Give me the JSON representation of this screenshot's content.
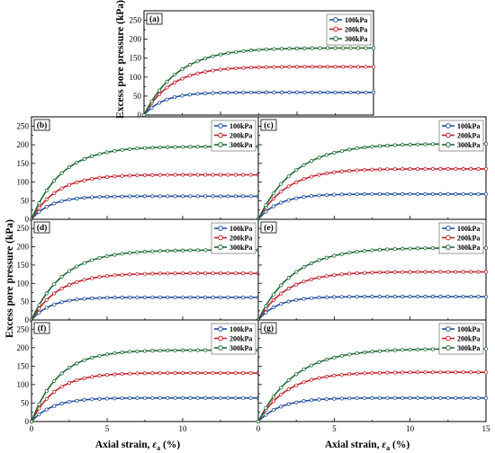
{
  "colors": {
    "100kPa": "#1f4e9c",
    "200kPa": "#c0222b",
    "300kPa": "#1e6b35"
  },
  "figure": {
    "ylabel": "Excess pore pressure (kPa)",
    "xlabel_main": "Axial strain, ",
    "xlabel_symbol": "ε",
    "xlabel_sub": "a",
    "xlabel_unit": " (%)"
  },
  "chart_data": [
    {
      "type": "line",
      "panel": "(a)",
      "xlim": [
        0,
        15
      ],
      "ylim": [
        0,
        275
      ],
      "xticks": [],
      "yticks": [
        0,
        50,
        100,
        150,
        200,
        250
      ],
      "legend": "top-right",
      "grid": false,
      "series": [
        {
          "name": "100kPa",
          "color_key": "100kPa",
          "plateau": 60,
          "strain_scale": 1.3,
          "late_slope": -0.04
        },
        {
          "name": "200kPa",
          "color_key": "200kPa",
          "plateau": 128,
          "strain_scale": 1.8,
          "late_slope": -0.1
        },
        {
          "name": "300kPa",
          "color_key": "300kPa",
          "plateau": 178,
          "strain_scale": 2.2,
          "late_slope": -0.14
        }
      ]
    },
    {
      "type": "line",
      "panel": "(b)",
      "xlim": [
        0,
        15
      ],
      "ylim": [
        0,
        275
      ],
      "xticks": [],
      "yticks": [
        0,
        50,
        100,
        150,
        200,
        250
      ],
      "legend": "top-right",
      "grid": false,
      "series": [
        {
          "name": "100kPa",
          "color_key": "100kPa",
          "plateau": 62,
          "strain_scale": 1.3,
          "late_slope": -0.04
        },
        {
          "name": "200kPa",
          "color_key": "200kPa",
          "plateau": 120,
          "strain_scale": 1.7,
          "late_slope": -0.08
        },
        {
          "name": "300kPa",
          "color_key": "300kPa",
          "plateau": 196,
          "strain_scale": 2.0,
          "late_slope": -0.12
        }
      ]
    },
    {
      "type": "line",
      "panel": "(c)",
      "xlim": [
        0,
        15
      ],
      "ylim": [
        0,
        275
      ],
      "xticks": [],
      "yticks": [],
      "legend": "top-right",
      "grid": false,
      "series": [
        {
          "name": "100kPa",
          "color_key": "100kPa",
          "plateau": 68,
          "strain_scale": 1.4,
          "late_slope": -0.04
        },
        {
          "name": "200kPa",
          "color_key": "200kPa",
          "plateau": 136,
          "strain_scale": 1.9,
          "late_slope": -0.08
        },
        {
          "name": "300kPa",
          "color_key": "300kPa",
          "plateau": 204,
          "strain_scale": 2.4,
          "late_slope": -0.12
        }
      ]
    },
    {
      "type": "line",
      "panel": "(d)",
      "xlim": [
        0,
        15
      ],
      "ylim": [
        0,
        275
      ],
      "xticks": [],
      "yticks": [
        0,
        50,
        100,
        150,
        200,
        250
      ],
      "legend": "top-right",
      "grid": false,
      "series": [
        {
          "name": "100kPa",
          "color_key": "100kPa",
          "plateau": 62,
          "strain_scale": 1.3,
          "late_slope": -0.04
        },
        {
          "name": "200kPa",
          "color_key": "200kPa",
          "plateau": 128,
          "strain_scale": 1.8,
          "late_slope": -0.08
        },
        {
          "name": "300kPa",
          "color_key": "300kPa",
          "plateau": 192,
          "strain_scale": 2.1,
          "late_slope": -0.12
        }
      ]
    },
    {
      "type": "line",
      "panel": "(e)",
      "xlim": [
        0,
        15
      ],
      "ylim": [
        0,
        275
      ],
      "xticks": [],
      "yticks": [],
      "legend": "top-right",
      "grid": false,
      "series": [
        {
          "name": "100kPa",
          "color_key": "100kPa",
          "plateau": 64,
          "strain_scale": 1.3,
          "late_slope": -0.04
        },
        {
          "name": "200kPa",
          "color_key": "200kPa",
          "plateau": 132,
          "strain_scale": 1.9,
          "late_slope": -0.08
        },
        {
          "name": "300kPa",
          "color_key": "300kPa",
          "plateau": 198,
          "strain_scale": 2.3,
          "late_slope": -0.12
        }
      ]
    },
    {
      "type": "line",
      "panel": "(f)",
      "xlim": [
        0,
        15
      ],
      "ylim": [
        0,
        275
      ],
      "xticks": [
        0,
        5,
        10
      ],
      "yticks": [
        0,
        50,
        100,
        150,
        200,
        250
      ],
      "legend": "top-right",
      "grid": false,
      "series": [
        {
          "name": "100kPa",
          "color_key": "100kPa",
          "plateau": 64,
          "strain_scale": 1.4,
          "late_slope": -0.04
        },
        {
          "name": "200kPa",
          "color_key": "200kPa",
          "plateau": 132,
          "strain_scale": 1.6,
          "late_slope": -0.08
        },
        {
          "name": "300kPa",
          "color_key": "300kPa",
          "plateau": 194,
          "strain_scale": 1.8,
          "late_slope": -0.12
        }
      ]
    },
    {
      "type": "line",
      "panel": "(g)",
      "xlim": [
        0,
        15
      ],
      "ylim": [
        0,
        275
      ],
      "xticks": [
        0,
        5,
        10,
        15
      ],
      "yticks": [],
      "legend": "top-right",
      "grid": false,
      "series": [
        {
          "name": "100kPa",
          "color_key": "100kPa",
          "plateau": 64,
          "strain_scale": 1.5,
          "late_slope": -0.04
        },
        {
          "name": "200kPa",
          "color_key": "200kPa",
          "plateau": 134,
          "strain_scale": 1.9,
          "late_slope": -0.08
        },
        {
          "name": "300kPa",
          "color_key": "300kPa",
          "plateau": 198,
          "strain_scale": 2.4,
          "late_slope": -0.12
        }
      ]
    }
  ]
}
